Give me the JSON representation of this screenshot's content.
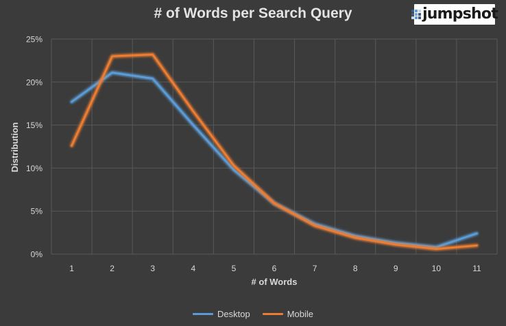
{
  "colors": {
    "background": "#3b3b3b",
    "gridline": "#595959",
    "text": "#d9d9d9",
    "desktop": "#5b9bd5",
    "mobile": "#ed7d31",
    "logo_dots": [
      "#3d5a8a",
      "#5aa0e0",
      "#c9d3e0",
      "#3d5a8a",
      "#7aa7d9",
      "#3d5a8a",
      "#c9d3e0",
      "#5aa0e0",
      "#3d5a8a"
    ]
  },
  "logo": {
    "text": "jumpshot"
  },
  "chart_data": {
    "type": "line",
    "title": "# of Words per Search Query",
    "xlabel": "# of Words",
    "ylabel": "Distribution",
    "x": [
      1,
      2,
      3,
      4,
      5,
      6,
      7,
      8,
      9,
      10,
      11
    ],
    "y_ticks": [
      "0%",
      "5%",
      "10%",
      "15%",
      "20%",
      "25%"
    ],
    "ylim": [
      0,
      25
    ],
    "grid": true,
    "legend_position": "bottom",
    "series": [
      {
        "name": "Desktop",
        "color": "#5b9bd5",
        "values": [
          17.7,
          21.1,
          20.4,
          15.0,
          9.8,
          5.9,
          3.5,
          2.1,
          1.3,
          0.8,
          2.4
        ]
      },
      {
        "name": "Mobile",
        "color": "#ed7d31",
        "values": [
          12.6,
          23.0,
          23.2,
          16.6,
          10.3,
          5.9,
          3.3,
          1.9,
          1.1,
          0.6,
          1.0
        ]
      }
    ]
  }
}
